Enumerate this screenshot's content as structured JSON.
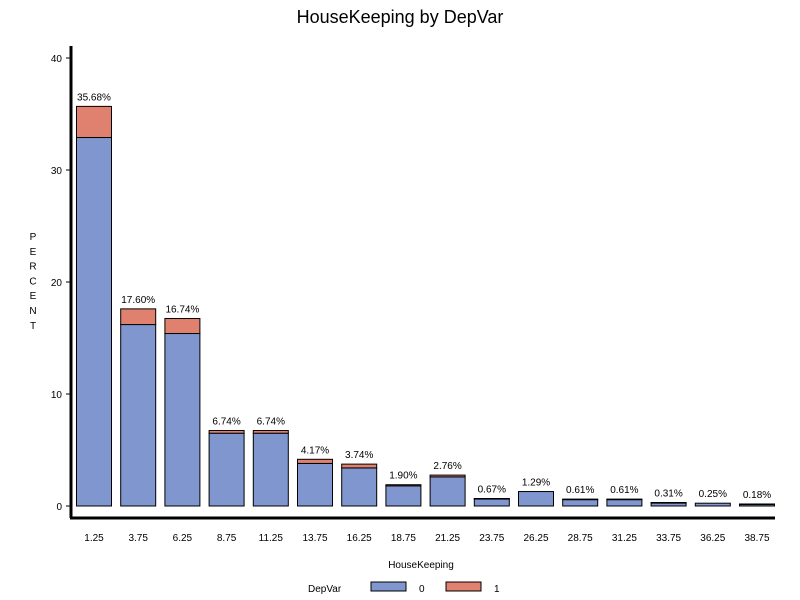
{
  "chart_data": {
    "type": "bar",
    "stacked": true,
    "title": "HouseKeeping by DepVar",
    "xlabel": "HouseKeeping",
    "ylabel": "PERCENT",
    "ylim": [
      0,
      40
    ],
    "yticks": [
      0,
      10,
      20,
      30,
      40
    ],
    "categories": [
      "1.25",
      "3.75",
      "6.25",
      "8.75",
      "11.25",
      "13.75",
      "16.25",
      "18.75",
      "21.25",
      "23.75",
      "26.25",
      "28.75",
      "31.25",
      "33.75",
      "36.25",
      "38.75"
    ],
    "series": [
      {
        "name": "0",
        "color": "#7f96cf",
        "values": [
          32.9,
          16.2,
          15.4,
          6.5,
          6.5,
          3.8,
          3.4,
          1.8,
          2.6,
          0.65,
          1.29,
          0.6,
          0.6,
          0.3,
          0.25,
          0.17
        ]
      },
      {
        "name": "1",
        "color": "#e0806f",
        "values": [
          2.78,
          1.4,
          1.34,
          0.24,
          0.24,
          0.37,
          0.34,
          0.1,
          0.16,
          0.02,
          0.0,
          0.01,
          0.01,
          0.01,
          0.0,
          0.01
        ]
      }
    ],
    "totals_labels": [
      "35.68%",
      "17.60%",
      "16.74%",
      "6.74%",
      "6.74%",
      "4.17%",
      "3.74%",
      "1.90%",
      "2.76%",
      "0.67%",
      "1.29%",
      "0.61%",
      "0.61%",
      "0.31%",
      "0.25%",
      "0.18%"
    ],
    "legend": {
      "title": "DepVar",
      "position": "bottom"
    }
  }
}
